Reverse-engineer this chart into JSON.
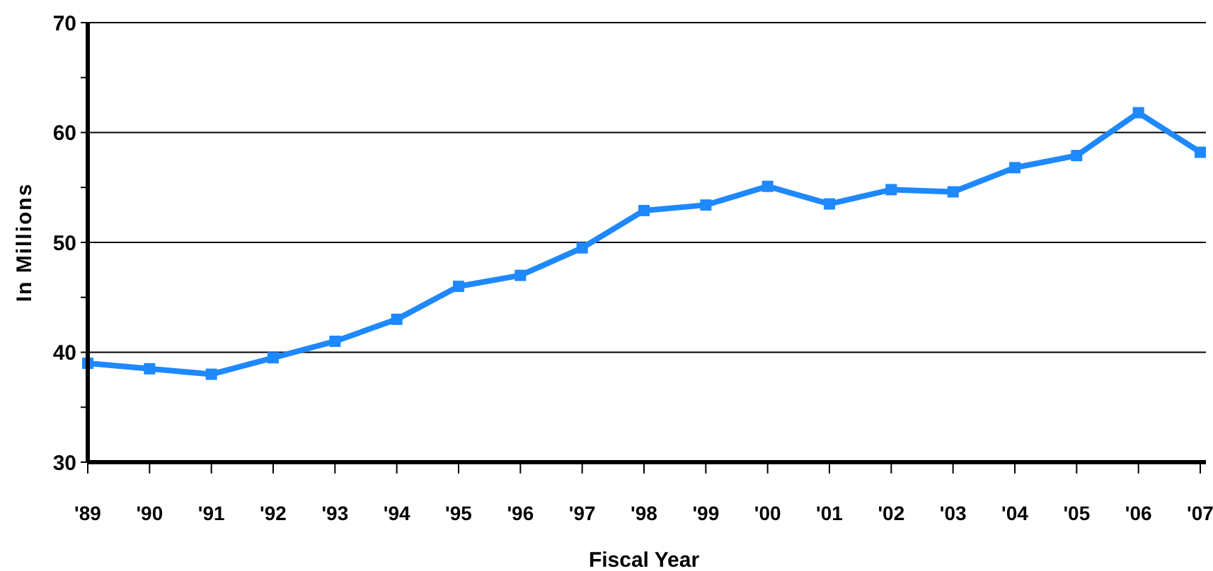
{
  "chart_data": {
    "type": "line",
    "xlabel": "Fiscal Year",
    "ylabel": "In Millions",
    "categories": [
      "'89",
      "'90",
      "'91",
      "'92",
      "'93",
      "'94",
      "'95",
      "'96",
      "'97",
      "'98",
      "'99",
      "'00",
      "'01",
      "'02",
      "'03",
      "'04",
      "'05",
      "'06",
      "'07"
    ],
    "series": [
      {
        "color": "#1e88ff",
        "values": [
          39.0,
          38.5,
          38.0,
          39.5,
          41.0,
          43.0,
          46.0,
          47.0,
          49.5,
          52.9,
          53.4,
          55.1,
          53.5,
          54.8,
          54.6,
          56.8,
          57.9,
          61.8,
          58.2
        ]
      }
    ],
    "ylim": [
      30,
      70
    ],
    "yticks": [
      30,
      {
        "value": 35,
        "label": null
      },
      40,
      {
        "value": 45,
        "label": null
      },
      50,
      {
        "value": 55,
        "label": null
      },
      60,
      {
        "value": 65,
        "label": null
      },
      70
    ],
    "grid": "y",
    "marker": "square",
    "line_style": "solid"
  }
}
